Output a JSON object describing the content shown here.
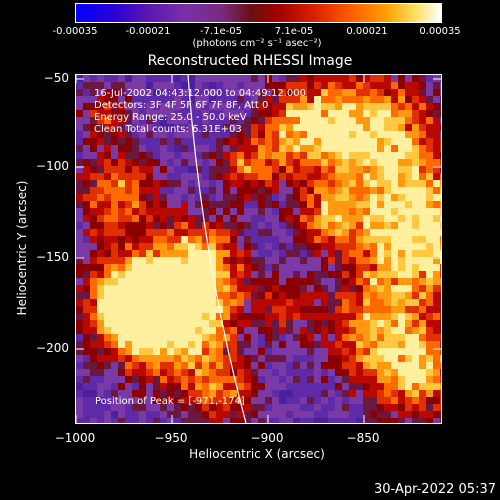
{
  "colorbar": {
    "ticks": [
      "-0.00035",
      "-0.00021",
      "-7.1e-05",
      "7.1e-05",
      "0.00021",
      "0.00035"
    ],
    "unit": "(photons cm⁻² s⁻¹ asec⁻²)"
  },
  "title": "Reconstructed RHESSI Image",
  "info": {
    "time": "16-Jul-2002 04:43:12.000 to 04:49:12.000",
    "detectors": "Detectors: 3F 4F 5F 6F 7F 8F, Att 0",
    "energy": "Energy Range: 25.0 - 50.0 keV",
    "clean": "Clean     Total counts: 6.31E+03"
  },
  "peak": "Position of Peak = [-971,-174]",
  "axes": {
    "xlabel": "Heliocentric X (arcsec)",
    "ylabel": "Heliocentric Y (arcsec)",
    "xticks": [
      "−1000",
      "−950",
      "−900",
      "−850"
    ],
    "yticks": [
      "−50",
      "−100",
      "−150",
      "−200"
    ]
  },
  "timestamp": "30-Apr-2022 05:37"
}
